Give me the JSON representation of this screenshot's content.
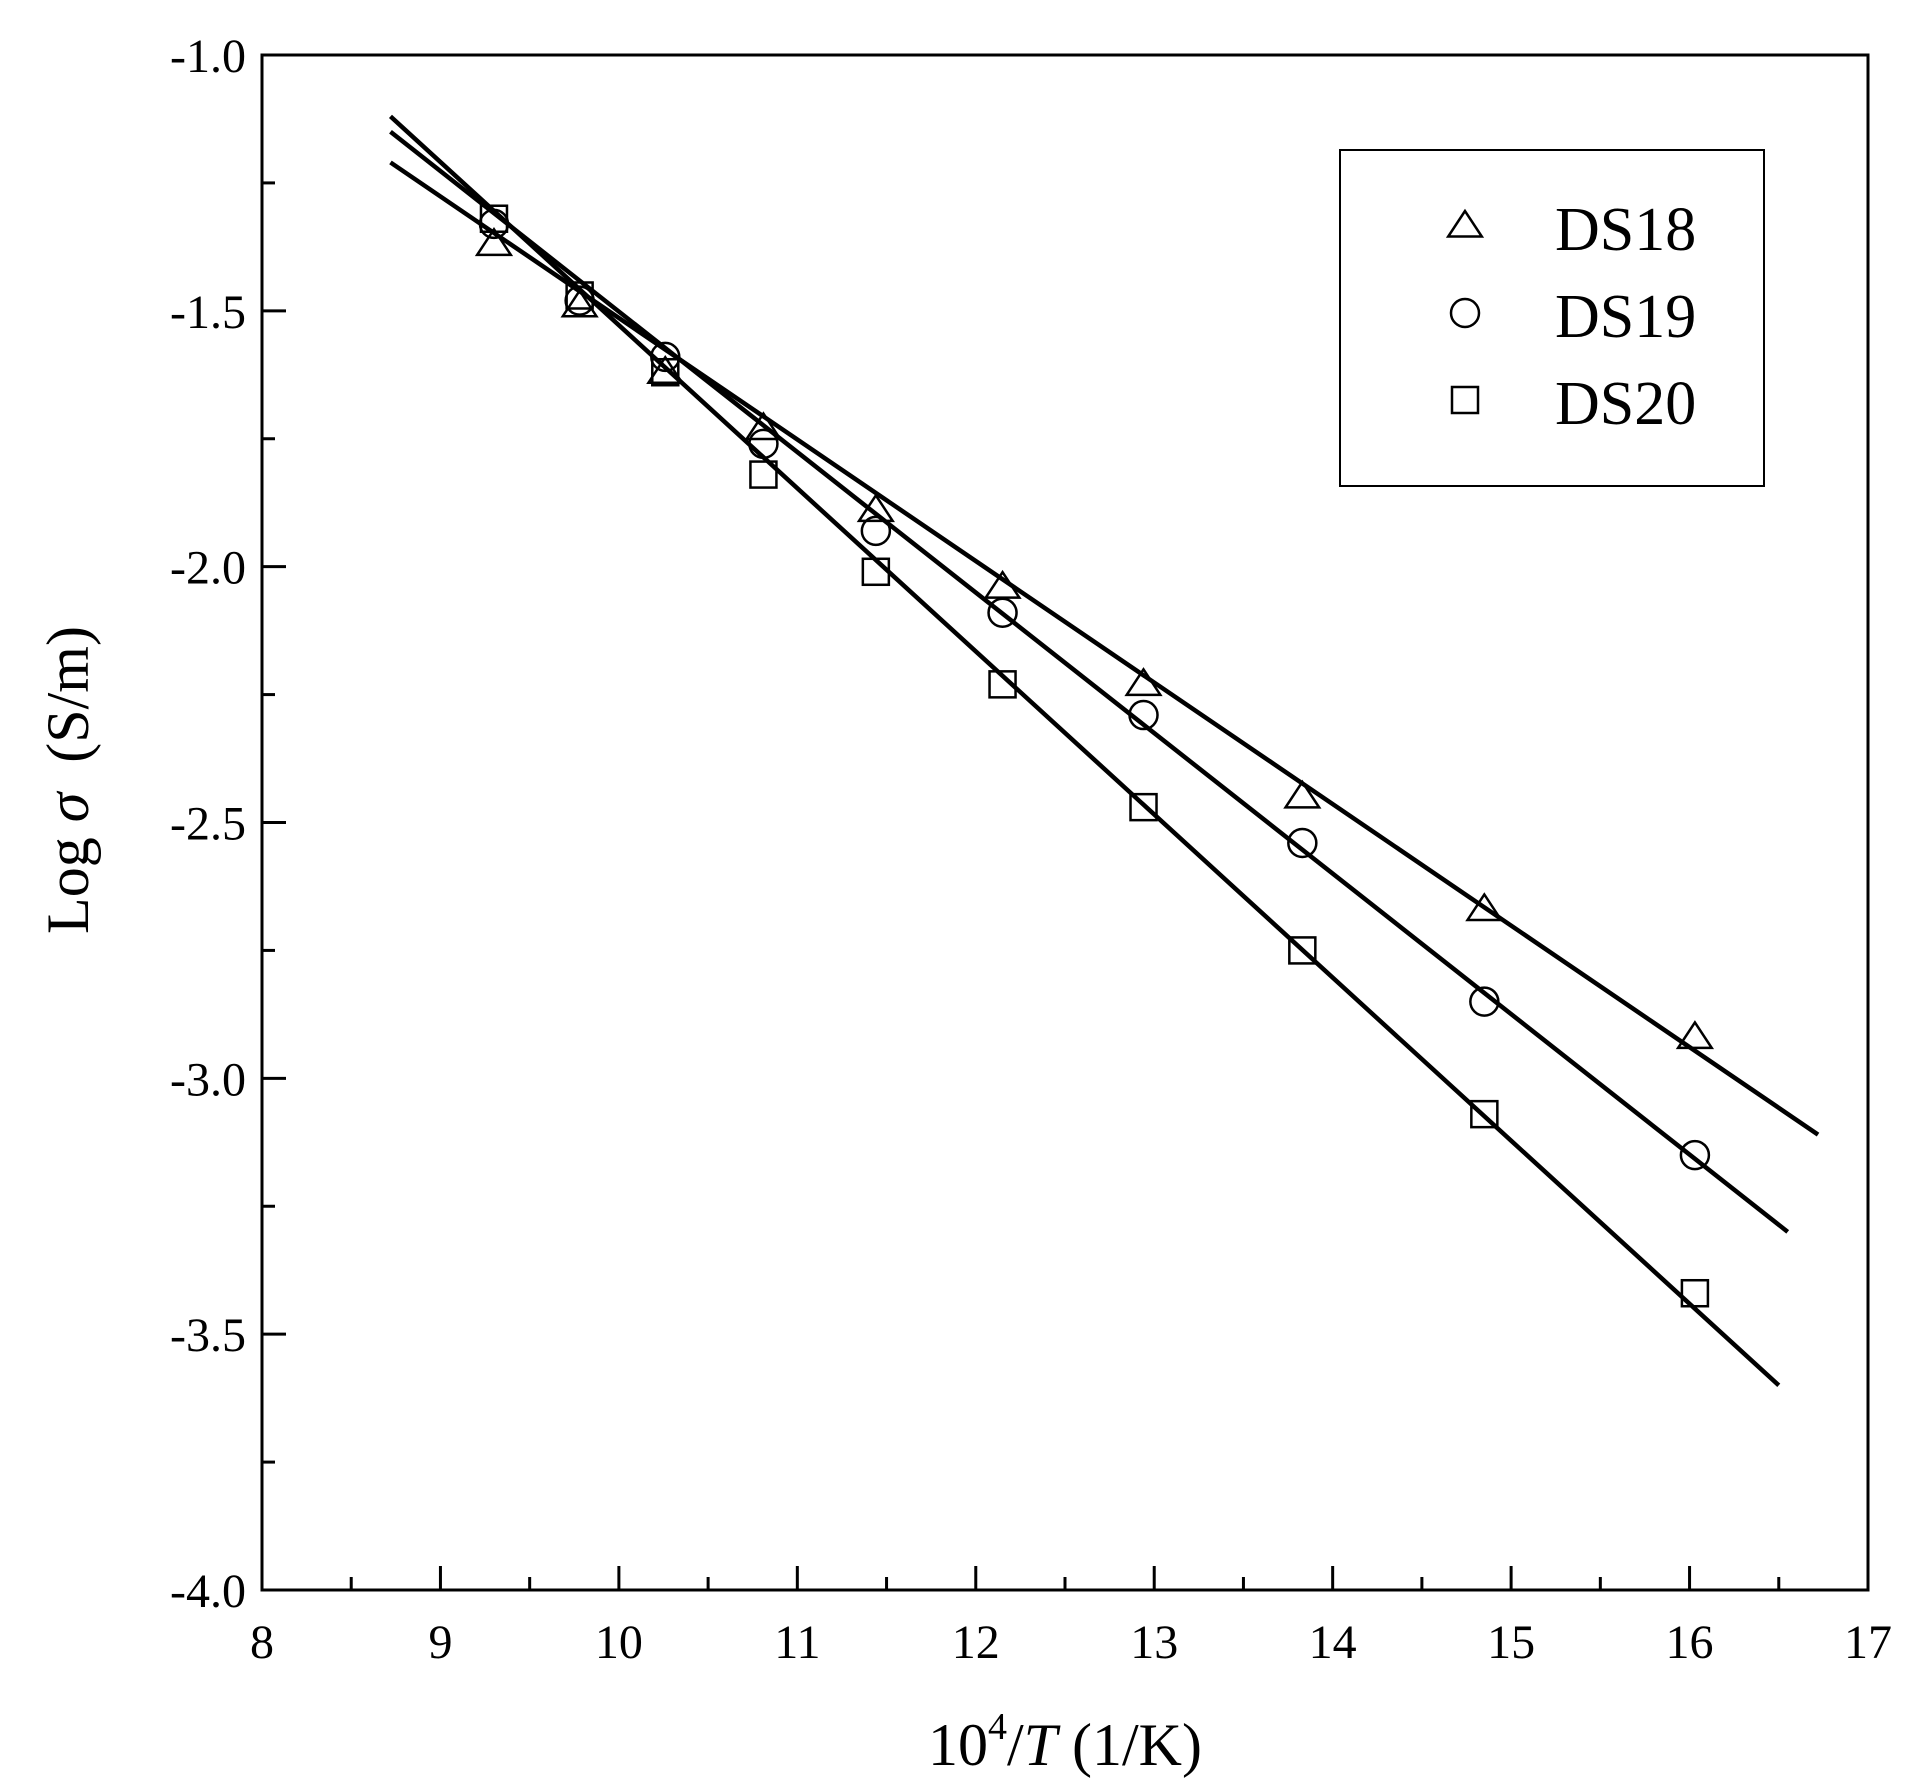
{
  "chart_data": {
    "type": "scatter",
    "title": "",
    "xlabel": {
      "base": "10",
      "superscript": "4",
      "slash": "/",
      "variable": "T",
      "unit": " (1/K)"
    },
    "ylabel": {
      "prefix": "Log ",
      "symbol": "σ",
      "unit": "  (S/m)"
    },
    "xlim": [
      8,
      17
    ],
    "ylim": [
      -4.0,
      -1.0
    ],
    "x_ticks": [
      8,
      9,
      10,
      11,
      12,
      13,
      14,
      15,
      16,
      17
    ],
    "x_tick_labels": [
      "8",
      "9",
      "10",
      "11",
      "12",
      "13",
      "14",
      "15",
      "16",
      "17"
    ],
    "y_ticks": [
      -1.0,
      -1.5,
      -2.0,
      -2.5,
      -3.0,
      -3.5,
      -4.0
    ],
    "y_tick_labels": [
      "-1.0",
      "-1.5",
      "-2.0",
      "-2.5",
      "-3.0",
      "-3.5",
      "-4.0"
    ],
    "grid": false,
    "legend_position": "top-right",
    "series": [
      {
        "name": "DS18",
        "marker": "triangle",
        "x": [
          9.3,
          9.78,
          10.26,
          10.81,
          11.44,
          12.15,
          12.94,
          13.83,
          14.85,
          16.03
        ],
        "y": [
          -1.37,
          -1.49,
          -1.62,
          -1.73,
          -1.89,
          -2.04,
          -2.23,
          -2.45,
          -2.67,
          -2.92
        ],
        "fit": {
          "x": [
            8.72,
            16.72
          ],
          "y": [
            -1.21,
            -3.11
          ]
        }
      },
      {
        "name": "DS19",
        "marker": "circle",
        "x": [
          9.3,
          9.78,
          10.26,
          10.81,
          11.44,
          12.15,
          12.94,
          13.83,
          14.85,
          16.03
        ],
        "y": [
          -1.33,
          -1.48,
          -1.59,
          -1.76,
          -1.93,
          -2.09,
          -2.29,
          -2.54,
          -2.85,
          -3.15
        ],
        "fit": {
          "x": [
            8.72,
            16.55
          ],
          "y": [
            -1.15,
            -3.3
          ]
        }
      },
      {
        "name": "DS20",
        "marker": "square",
        "x": [
          9.3,
          9.78,
          10.26,
          10.81,
          11.44,
          12.15,
          12.94,
          13.83,
          14.85,
          16.03
        ],
        "y": [
          -1.32,
          -1.47,
          -1.62,
          -1.82,
          -2.01,
          -2.23,
          -2.47,
          -2.75,
          -3.07,
          -3.42
        ],
        "fit": {
          "x": [
            8.72,
            16.5
          ],
          "y": [
            -1.12,
            -3.6
          ]
        }
      }
    ]
  }
}
